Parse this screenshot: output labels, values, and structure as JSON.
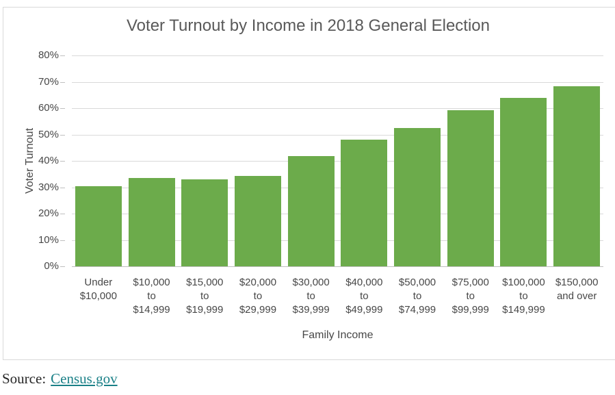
{
  "chart_data": {
    "type": "bar",
    "title": "Voter Turnout by Income in 2018 General Election",
    "xlabel": "Family Income",
    "ylabel": "Voter Turnout",
    "categories": [
      "Under\n$10,000",
      "$10,000\nto\n$14,999",
      "$15,000\nto\n$19,999",
      "$20,000\nto\n$29,999",
      "$30,000\nto\n$39,999",
      "$40,000\nto\n$49,999",
      "$50,000\nto\n$74,999",
      "$75,000\nto\n$99,999",
      "$100,000\nto\n$149,999",
      "$150,000\nand over"
    ],
    "values": [
      30.4,
      33.6,
      33.0,
      34.4,
      41.7,
      48.1,
      52.4,
      59.1,
      64.0,
      68.2
    ],
    "ylim": [
      0,
      80
    ],
    "ytick_step": 10,
    "ytick_suffix": "%",
    "grid": true,
    "legend": false,
    "bar_color": "#6CAB4B",
    "gridline_color": "#D9D9D9",
    "axis_color": "#BFBFBF",
    "title_color": "#595959",
    "label_color": "#474747"
  },
  "source": {
    "label": "Source:",
    "link_text": "Census.gov",
    "link_color": "#1A8087"
  }
}
